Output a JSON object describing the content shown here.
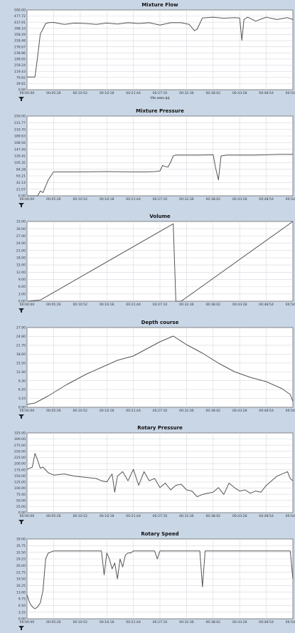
{
  "chart_data": [
    {
      "type": "line",
      "title": "Mixture Flow",
      "xlabel": "tile.sass.qq",
      "ylabel": "",
      "yticks": [
        "0.00",
        "39.81",
        "79.62",
        "119.43",
        "159.24",
        "199.05",
        "238.86",
        "278.67",
        "318.48",
        "358.29",
        "398.10",
        "437.91",
        "477.72",
        "500.00"
      ],
      "xticks": [
        "00:00:00",
        "00:05:26",
        "00:10:52",
        "00:16:18",
        "00:21:44",
        "00:27:10",
        "00:32:36",
        "00:38:02",
        "00:43:28",
        "00:48:54",
        "00:54:20"
      ],
      "ylim": [
        0,
        500
      ],
      "xlim": [
        0,
        100
      ],
      "grid": true,
      "legend": "none",
      "x": [
        0,
        3,
        4,
        5,
        6,
        7,
        8,
        10,
        14,
        18,
        22,
        26,
        30,
        34,
        38,
        42,
        46,
        50,
        54,
        58,
        61,
        63,
        64,
        66,
        70,
        74,
        78,
        80,
        80.8,
        81.6,
        83,
        86,
        90,
        94,
        98,
        100
      ],
      "y": [
        80,
        80,
        210,
        350,
        380,
        415,
        420,
        422,
        410,
        418,
        415,
        410,
        418,
        412,
        420,
        415,
        420,
        405,
        420,
        420,
        410,
        370,
        380,
        450,
        455,
        448,
        452,
        450,
        310,
        440,
        455,
        430,
        455,
        440,
        452,
        440
      ]
    },
    {
      "type": "line",
      "title": "Mixture Pressure",
      "xlabel": "",
      "ylabel": "",
      "yticks": [
        "0.00",
        "21.07",
        "42.14",
        "63.21",
        "84.28",
        "105.35",
        "126.42",
        "147.49",
        "168.56",
        "189.63",
        "210.70",
        "231.77",
        "250.00"
      ],
      "xticks": [
        "00:00:00",
        "00:05:26",
        "00:10:52",
        "00:16:18",
        "00:21:44",
        "00:27:10",
        "00:32:36",
        "00:38:02",
        "00:43:28",
        "00:48:54",
        "00:54:20"
      ],
      "ylim": [
        0,
        250
      ],
      "xlim": [
        0,
        100
      ],
      "grid": true,
      "legend": "none",
      "x": [
        0,
        4,
        5,
        6,
        7,
        8,
        10,
        20,
        30,
        40,
        45,
        48,
        50,
        51,
        52,
        53,
        54,
        55,
        56,
        65,
        70,
        71,
        72,
        73,
        75,
        85,
        95,
        100
      ],
      "y": [
        0,
        0,
        15,
        10,
        30,
        50,
        75,
        75,
        76,
        75,
        75,
        76,
        78,
        95,
        92,
        90,
        105,
        125,
        128,
        128,
        129,
        85,
        50,
        125,
        128,
        128,
        130,
        130
      ]
    },
    {
      "type": "line",
      "title": "Volume",
      "xlabel": "",
      "ylabel": "",
      "yticks": [
        "0.00",
        "3.00",
        "6.00",
        "9.00",
        "12.00",
        "15.00",
        "18.00",
        "21.00",
        "24.00",
        "27.00",
        "30.00",
        "33.00"
      ],
      "xticks": [
        "00:00:00",
        "00:05:26",
        "00:10:52",
        "00:16:18",
        "00:21:44",
        "00:27:10",
        "00:32:36",
        "00:38:02",
        "00:43:28",
        "00:48:54",
        "00:54:20"
      ],
      "ylim": [
        0,
        34
      ],
      "xlim": [
        0,
        100
      ],
      "grid": true,
      "legend": "none",
      "x": [
        0,
        5,
        55,
        56,
        58,
        100
      ],
      "y": [
        0,
        0.5,
        33,
        0,
        0,
        34
      ]
    },
    {
      "type": "line",
      "title": "Depth course",
      "xlabel": "",
      "ylabel": "",
      "yticks": [
        "0.00",
        "3.10",
        "6.20",
        "9.30",
        "12.40",
        "15.50",
        "18.60",
        "21.70",
        "24.80",
        "27.90"
      ],
      "xticks": [
        "00:00:00",
        "00:05:26",
        "00:10:52",
        "00:16:18",
        "00:21:44",
        "00:27:10",
        "00:32:36",
        "00:38:02",
        "00:43:28",
        "00:48:54",
        "00:54:20"
      ],
      "ylim": [
        0,
        28
      ],
      "xlim": [
        0,
        100
      ],
      "grid": true,
      "legend": "none",
      "x": [
        0,
        3,
        8,
        15,
        22,
        28,
        34,
        40,
        46,
        50,
        55,
        60,
        66,
        72,
        78,
        84,
        90,
        96,
        99,
        100
      ],
      "y": [
        1,
        1.5,
        4,
        8,
        11.5,
        14,
        16.5,
        18,
        21,
        23,
        25,
        22,
        19,
        15.5,
        12.5,
        10.5,
        9,
        6.5,
        4.5,
        2
      ]
    },
    {
      "type": "line",
      "title": "Rotary Pressure",
      "xlabel": "",
      "ylabel": "",
      "yticks": [
        "0.00",
        "25.00",
        "50.00",
        "75.00",
        "100.00",
        "125.00",
        "150.00",
        "175.00",
        "200.00",
        "225.00",
        "250.00",
        "275.00",
        "300.00",
        "325.00"
      ],
      "xticks": [
        "00:00:00",
        "00:05:26",
        "00:10:52",
        "00:16:18",
        "00:21:44",
        "00:27:10",
        "00:32:36",
        "00:38:02",
        "00:43:28",
        "00:48:54",
        "00:54:20"
      ],
      "ylim": [
        0,
        350
      ],
      "xlim": [
        0,
        100
      ],
      "grid": true,
      "legend": "none",
      "x": [
        0,
        2,
        3,
        4,
        5,
        6,
        8,
        10,
        14,
        18,
        22,
        26,
        28,
        30,
        32,
        33,
        34,
        36,
        38,
        40,
        42,
        44,
        46,
        48,
        50,
        52,
        54,
        56,
        58,
        60,
        62,
        64,
        66,
        68,
        70,
        72,
        74,
        76,
        78,
        80,
        82,
        84,
        86,
        88,
        90,
        92,
        94,
        96,
        98,
        99,
        100
      ],
      "y": [
        190,
        200,
        260,
        230,
        195,
        200,
        175,
        165,
        170,
        160,
        155,
        150,
        140,
        135,
        170,
        90,
        160,
        180,
        140,
        190,
        120,
        180,
        140,
        150,
        110,
        130,
        100,
        120,
        125,
        100,
        95,
        70,
        80,
        85,
        90,
        110,
        80,
        130,
        110,
        95,
        100,
        85,
        95,
        90,
        120,
        140,
        160,
        170,
        180,
        150,
        140
      ]
    },
    {
      "type": "line",
      "title": "Rotary Speed",
      "xlabel": "",
      "ylabel": "",
      "yticks": [
        "0.00",
        "3.25",
        "6.50",
        "9.75",
        "13.00",
        "16.25",
        "19.50",
        "22.75",
        "26.00",
        "29.25",
        "32.50",
        "35.75",
        "39.00"
      ],
      "xticks": [
        "00:00:00",
        "00:05:26",
        "00:10:52",
        "00:16:18",
        "00:21:44",
        "00:27:10",
        "00:32:36",
        "00:38:02",
        "00:43:28",
        "00:48:54",
        "00:54:20"
      ],
      "ylim": [
        0,
        40
      ],
      "xlim": [
        0,
        100
      ],
      "grid": true,
      "legend": "none",
      "x": [
        0,
        1,
        2,
        3,
        4,
        5,
        6,
        7,
        8,
        10,
        20,
        28,
        29,
        30,
        31,
        32,
        33,
        34,
        35,
        36,
        37,
        38,
        39,
        40,
        48,
        49,
        50,
        60,
        65,
        66,
        67,
        75,
        85,
        95,
        99,
        100
      ],
      "y": [
        12,
        8,
        6,
        5,
        6,
        8,
        14,
        30,
        33,
        34,
        34,
        34,
        22,
        33,
        30,
        25,
        28,
        20,
        30,
        26,
        32,
        33,
        33,
        34,
        34,
        30,
        34,
        34,
        34,
        16,
        34,
        34,
        34,
        34,
        34,
        20
      ]
    }
  ]
}
